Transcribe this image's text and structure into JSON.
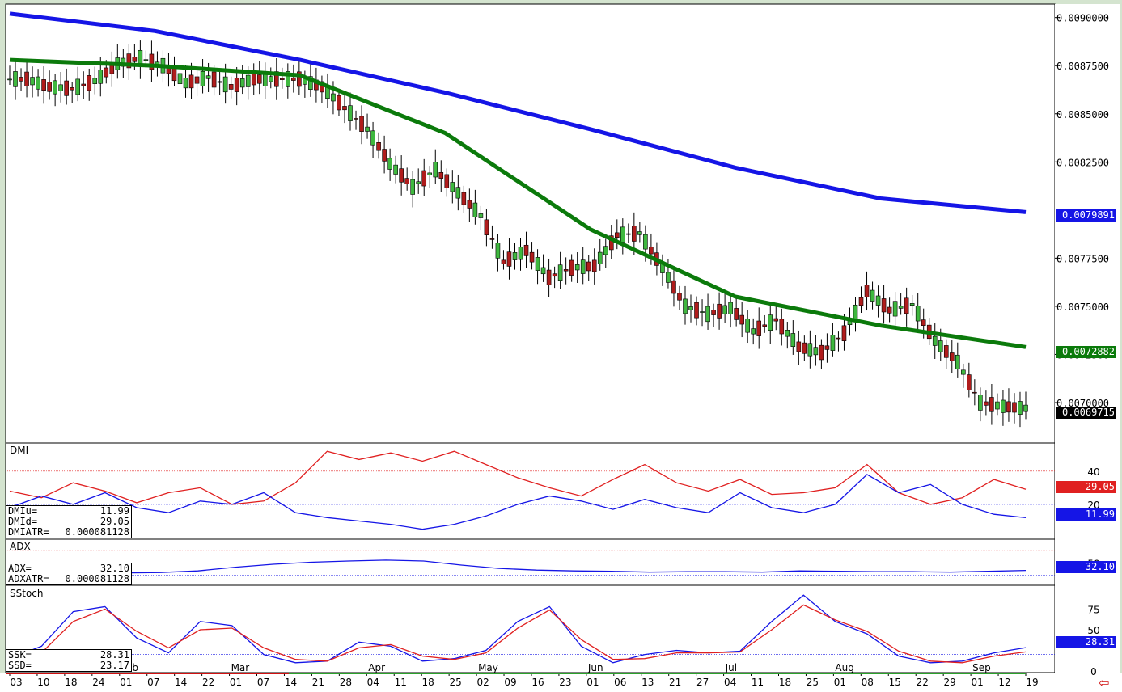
{
  "chart_data": [
    {
      "type": "candlestick",
      "panel": "price",
      "ylim": [
        0.00679,
        0.00907
      ],
      "y_ticks": [
        "0.0090000",
        "0.0087500",
        "0.0085000",
        "0.0082500",
        "0.0077500",
        "0.0075000",
        "0.0072500",
        "0.0070000"
      ],
      "y_tick_values": [
        0.009,
        0.00875,
        0.0085,
        0.00825,
        0.00775,
        0.0075,
        0.00725,
        0.007
      ],
      "series": [
        {
          "name": "MA200",
          "color": "#1515e6",
          "values": [
            0.00902,
            0.00893,
            0.00878,
            0.00861,
            0.00842,
            0.00822,
            0.00806,
            0.00798915
          ]
        },
        {
          "name": "MA100",
          "color": "#0b7a0b",
          "values": [
            0.00878,
            0.00875,
            0.0087,
            0.0084,
            0.0079,
            0.00755,
            0.0074,
            0.00728822
          ]
        }
      ],
      "last_values": {
        "ma200": "0.0079891",
        "ma100": "0.0072882",
        "close": "0.0069715"
      },
      "candles": [
        0.00868,
        0.00864,
        0.00863,
        0.00867,
        0.00876,
        0.00879,
        0.00875,
        0.00866,
        0.00869,
        0.00864,
        0.00868,
        0.00868,
        0.00868,
        0.00864,
        0.00853,
        0.00842,
        0.00824,
        0.00812,
        0.00821,
        0.00809,
        0.00797,
        0.00773,
        0.00779,
        0.00765,
        0.0077,
        0.00771,
        0.00787,
        0.00788,
        0.0077,
        0.0075,
        0.00746,
        0.00749,
        0.00737,
        0.00743,
        0.00729,
        0.00726,
        0.00736,
        0.00758,
        0.00748,
        0.00751,
        0.00732,
        0.00721,
        0.007,
        0.00698,
        0.00697
      ]
    },
    {
      "type": "line",
      "panel": "DMI",
      "ylim": [
        0,
        55
      ],
      "y_ticks": [
        "40",
        "20"
      ],
      "y_tick_values": [
        40,
        20
      ],
      "series": [
        {
          "name": "DMId",
          "color": "#e02020",
          "values": [
            28,
            24,
            33,
            28,
            21,
            27,
            30,
            20,
            22,
            33,
            52,
            47,
            51,
            46,
            52,
            44,
            36,
            30,
            25,
            35,
            44,
            33,
            28,
            35,
            26,
            27,
            30,
            44,
            27,
            20,
            24,
            35,
            29.05
          ]
        },
        {
          "name": "DMIu",
          "color": "#1515e6",
          "values": [
            18,
            25,
            20,
            27,
            18,
            15,
            22,
            20,
            27,
            15,
            12,
            10,
            8,
            5,
            8,
            13,
            20,
            25,
            22,
            17,
            23,
            18,
            15,
            27,
            18,
            15,
            20,
            38,
            27,
            32,
            20,
            14,
            11.99
          ]
        }
      ],
      "labels": {
        "u": "DMIu=",
        "u_val": "11.99",
        "d": "DMId=",
        "d_val": "29.05",
        "atr": "DMIATR=",
        "atr_val": "0.000081128"
      }
    },
    {
      "type": "line",
      "panel": "ADX",
      "ylim": [
        0,
        100
      ],
      "y_ticks": [
        "50"
      ],
      "y_tick_values": [
        50
      ],
      "series": [
        {
          "name": "ADX",
          "color": "#1515e6",
          "values": [
            26,
            26,
            25,
            26,
            27,
            31,
            40,
            47,
            52,
            55,
            57,
            55,
            45,
            37,
            33,
            31,
            30,
            28,
            29,
            29,
            28,
            31,
            30,
            29,
            29,
            28,
            30,
            32.1
          ]
        }
      ],
      "labels": {
        "adx": "ADX=",
        "adx_val": "32.10",
        "atr": "ADXATR=",
        "atr_val": "0.000081128"
      }
    },
    {
      "type": "line",
      "panel": "SStoch",
      "ylim": [
        0,
        100
      ],
      "y_ticks": [
        "75",
        "50",
        "0"
      ],
      "y_tick_values": [
        75,
        50,
        0
      ],
      "series": [
        {
          "name": "SSK",
          "color": "#1515e6",
          "values": [
            15,
            30,
            72,
            78,
            40,
            22,
            60,
            55,
            20,
            10,
            12,
            35,
            30,
            12,
            15,
            25,
            60,
            78,
            30,
            10,
            20,
            25,
            22,
            24,
            60,
            92,
            60,
            45,
            18,
            10,
            12,
            22,
            28.31
          ]
        },
        {
          "name": "SSD",
          "color": "#e02020",
          "values": [
            15,
            22,
            60,
            75,
            48,
            28,
            50,
            52,
            28,
            14,
            12,
            28,
            32,
            18,
            14,
            22,
            52,
            74,
            38,
            14,
            15,
            22,
            22,
            23,
            50,
            80,
            62,
            48,
            24,
            12,
            10,
            18,
            23.17
          ]
        }
      ],
      "labels": {
        "k": "SSK=",
        "k_val": "28.31",
        "d": "SSD=",
        "d_val": "23.17"
      }
    }
  ],
  "panels": {
    "dmi_title": "DMI",
    "adx_title": "ADX",
    "stoch_title": "SStoch"
  },
  "x_axis": {
    "days": [
      "03",
      "10",
      "18",
      "24",
      "01",
      "07",
      "14",
      "22",
      "01",
      "07",
      "14",
      "21",
      "28",
      "04",
      "11",
      "18",
      "25",
      "02",
      "09",
      "16",
      "23",
      "01",
      "06",
      "13",
      "21",
      "27",
      "04",
      "11",
      "18",
      "25",
      "01",
      "08",
      "15",
      "22",
      "29",
      "01",
      "12",
      "19"
    ],
    "months": [
      "Feb",
      "Mar",
      "Apr",
      "May",
      "Jun",
      "Jul",
      "Aug",
      "Sep"
    ]
  },
  "colors": {
    "frame": "#d4e4cf",
    "blue": "#1515e6",
    "green": "#0b7a0b",
    "red": "#e02020",
    "up": "#3fb83f",
    "down": "#b01c1c"
  }
}
